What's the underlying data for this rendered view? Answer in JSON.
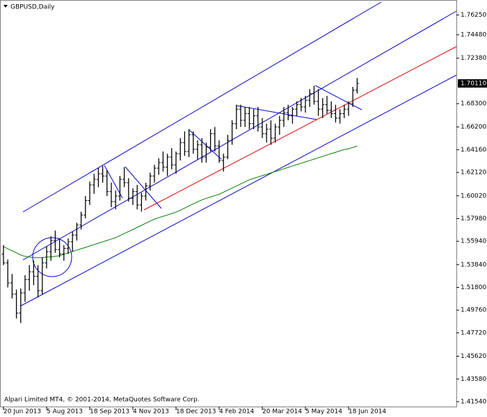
{
  "chart_data": {
    "type": "ohlc",
    "title": "GBPUSD,Daily",
    "footer": "Alpari Limited MT4, © 2001-2014, MetaQuotes Software Corp.",
    "categories": [
      "20 Jun 2013",
      null,
      null,
      null,
      null,
      null,
      null,
      null,
      null,
      null,
      "5 Aug 2013",
      null,
      null,
      null,
      null,
      null,
      null,
      null,
      null,
      null,
      "18 Sep 2013",
      null,
      null,
      null,
      null,
      null,
      null,
      null,
      null,
      null,
      "4 Nov 2013",
      null,
      null,
      null,
      null,
      null,
      null,
      null,
      null,
      null,
      "18 Dec 2013",
      null,
      null,
      null,
      null,
      null,
      null,
      null,
      null,
      null,
      "4 Feb 2014",
      null,
      null,
      null,
      null,
      null,
      null,
      null,
      null,
      null,
      "20 Mar 2014",
      null,
      null,
      null,
      null,
      null,
      null,
      null,
      null,
      null,
      "5 May 2014",
      null,
      null,
      null,
      null,
      null,
      null,
      null,
      null,
      null,
      "18 Jun 2014",
      null,
      null
    ],
    "series": [
      {
        "color": "#000000",
        "values": [
          [
            1.548,
            1.556,
            1.538,
            1.54
          ],
          [
            1.54,
            1.543,
            1.518,
            1.522
          ],
          [
            1.522,
            1.53,
            1.508,
            1.512
          ],
          [
            1.512,
            1.516,
            1.49,
            1.495
          ],
          [
            1.495,
            1.517,
            1.486,
            1.513
          ],
          [
            1.513,
            1.529,
            1.505,
            1.525
          ],
          [
            1.525,
            1.538,
            1.515,
            1.532
          ],
          [
            1.532,
            1.542,
            1.52,
            1.528
          ],
          [
            1.528,
            1.538,
            1.509,
            1.515
          ],
          [
            1.515,
            1.545,
            1.512,
            1.54
          ],
          [
            1.54,
            1.555,
            1.535,
            1.55
          ],
          [
            1.55,
            1.564,
            1.542,
            1.56
          ],
          [
            1.56,
            1.569,
            1.549,
            1.552
          ],
          [
            1.552,
            1.562,
            1.545,
            1.548
          ],
          [
            1.548,
            1.556,
            1.542,
            1.553
          ],
          [
            1.553,
            1.562,
            1.548,
            1.559
          ],
          [
            1.559,
            1.568,
            1.55,
            1.565
          ],
          [
            1.565,
            1.576,
            1.56,
            1.574
          ],
          [
            1.574,
            1.586,
            1.57,
            1.583
          ],
          [
            1.583,
            1.6,
            1.58,
            1.596
          ],
          [
            1.596,
            1.613,
            1.592,
            1.61
          ],
          [
            1.61,
            1.62,
            1.602,
            1.615
          ],
          [
            1.615,
            1.625,
            1.608,
            1.62
          ],
          [
            1.62,
            1.627,
            1.612,
            1.618
          ],
          [
            1.618,
            1.623,
            1.6,
            1.604
          ],
          [
            1.604,
            1.612,
            1.59,
            1.595
          ],
          [
            1.595,
            1.605,
            1.588,
            1.6
          ],
          [
            1.6,
            1.618,
            1.596,
            1.615
          ],
          [
            1.615,
            1.626,
            1.608,
            1.612
          ],
          [
            1.612,
            1.616,
            1.595,
            1.598
          ],
          [
            1.598,
            1.607,
            1.592,
            1.604
          ],
          [
            1.604,
            1.61,
            1.588,
            1.592
          ],
          [
            1.592,
            1.603,
            1.586,
            1.6
          ],
          [
            1.6,
            1.612,
            1.596,
            1.609
          ],
          [
            1.609,
            1.621,
            1.605,
            1.618
          ],
          [
            1.618,
            1.628,
            1.612,
            1.625
          ],
          [
            1.625,
            1.634,
            1.619,
            1.63
          ],
          [
            1.63,
            1.64,
            1.622,
            1.626
          ],
          [
            1.626,
            1.638,
            1.618,
            1.635
          ],
          [
            1.635,
            1.643,
            1.624,
            1.628
          ],
          [
            1.628,
            1.64,
            1.62,
            1.638
          ],
          [
            1.638,
            1.652,
            1.632,
            1.648
          ],
          [
            1.648,
            1.658,
            1.636,
            1.64
          ],
          [
            1.64,
            1.66,
            1.635,
            1.655
          ],
          [
            1.655,
            1.658,
            1.638,
            1.642
          ],
          [
            1.642,
            1.65,
            1.633,
            1.646
          ],
          [
            1.646,
            1.652,
            1.63,
            1.635
          ],
          [
            1.635,
            1.648,
            1.63,
            1.644
          ],
          [
            1.644,
            1.66,
            1.64,
            1.656
          ],
          [
            1.656,
            1.662,
            1.64,
            1.645
          ],
          [
            1.645,
            1.65,
            1.63,
            1.632
          ],
          [
            1.632,
            1.638,
            1.622,
            1.635
          ],
          [
            1.635,
            1.655,
            1.633,
            1.65
          ],
          [
            1.65,
            1.668,
            1.646,
            1.665
          ],
          [
            1.665,
            1.682,
            1.66,
            1.678
          ],
          [
            1.678,
            1.682,
            1.662,
            1.668
          ],
          [
            1.668,
            1.68,
            1.662,
            1.674
          ],
          [
            1.674,
            1.68,
            1.66,
            1.665
          ],
          [
            1.665,
            1.678,
            1.66,
            1.672
          ],
          [
            1.672,
            1.68,
            1.658,
            1.662
          ],
          [
            1.662,
            1.67,
            1.652,
            1.656
          ],
          [
            1.656,
            1.665,
            1.648,
            1.66
          ],
          [
            1.66,
            1.668,
            1.646,
            1.652
          ],
          [
            1.652,
            1.665,
            1.648,
            1.662
          ],
          [
            1.662,
            1.672,
            1.655,
            1.668
          ],
          [
            1.668,
            1.68,
            1.662,
            1.675
          ],
          [
            1.675,
            1.682,
            1.668,
            1.672
          ],
          [
            1.672,
            1.68,
            1.665,
            1.678
          ],
          [
            1.678,
            1.685,
            1.672,
            1.682
          ],
          [
            1.682,
            1.688,
            1.676,
            1.68
          ],
          [
            1.68,
            1.69,
            1.675,
            1.686
          ],
          [
            1.686,
            1.696,
            1.68,
            1.692
          ],
          [
            1.692,
            1.699,
            1.682,
            1.685
          ],
          [
            1.685,
            1.696,
            1.672,
            1.678
          ],
          [
            1.678,
            1.688,
            1.67,
            1.682
          ],
          [
            1.682,
            1.69,
            1.674,
            1.677
          ],
          [
            1.677,
            1.685,
            1.67,
            1.674
          ],
          [
            1.674,
            1.682,
            1.666,
            1.67
          ],
          [
            1.67,
            1.678,
            1.665,
            1.674
          ],
          [
            1.674,
            1.682,
            1.67,
            1.678
          ],
          [
            1.678,
            1.685,
            1.672,
            1.683
          ],
          [
            1.683,
            1.698,
            1.68,
            1.695
          ],
          [
            1.695,
            1.706,
            1.692,
            1.7011
          ]
        ]
      }
    ],
    "moving_average": {
      "color": "#008000",
      "values": [
        1.5546,
        1.5527,
        1.5508,
        1.549,
        1.5471,
        1.5459,
        1.5453,
        1.5447,
        1.5447,
        1.5447,
        1.5453,
        1.5453,
        1.5459,
        1.5465,
        1.5477,
        1.549,
        1.5502,
        1.5515,
        1.5527,
        1.5539,
        1.5552,
        1.5564,
        1.5577,
        1.5589,
        1.5601,
        1.5614,
        1.5626,
        1.5645,
        1.5663,
        1.5682,
        1.57,
        1.5719,
        1.5737,
        1.5756,
        1.5775,
        1.5793,
        1.5806,
        1.5818,
        1.583,
        1.5843,
        1.5855,
        1.5874,
        1.5892,
        1.5911,
        1.5929,
        1.5948,
        1.5966,
        1.5979,
        1.5991,
        1.6004,
        1.6016,
        1.6034,
        1.6053,
        1.6072,
        1.609,
        1.6109,
        1.6127,
        1.6146,
        1.6158,
        1.6171,
        1.6183,
        1.6195,
        1.6208,
        1.622,
        1.6232,
        1.6245,
        1.6257,
        1.627,
        1.6282,
        1.6294,
        1.6307,
        1.6319,
        1.6331,
        1.6344,
        1.6356,
        1.6369,
        1.6381,
        1.6393,
        1.6406,
        1.6418,
        1.6424,
        1.6437,
        1.6449
      ]
    },
    "ylim": [
      1.411,
      1.776
    ],
    "yticks": [
      {
        "value": 1.7625,
        "label": "1.76250"
      },
      {
        "value": 1.7448,
        "label": "1.74480"
      },
      {
        "value": 1.7238,
        "label": "1.72380"
      },
      {
        "value": 1.683,
        "label": "1.68300"
      },
      {
        "value": 1.662,
        "label": "1.66200"
      },
      {
        "value": 1.6416,
        "label": "1.64160"
      },
      {
        "value": 1.6212,
        "label": "1.62120"
      },
      {
        "value": 1.6002,
        "label": "1.60020"
      },
      {
        "value": 1.5798,
        "label": "1.57980"
      },
      {
        "value": 1.5594,
        "label": "1.55940"
      },
      {
        "value": 1.5384,
        "label": "1.53840"
      },
      {
        "value": 1.518,
        "label": "1.51800"
      },
      {
        "value": 1.4976,
        "label": "1.49760"
      },
      {
        "value": 1.4772,
        "label": "1.47720"
      },
      {
        "value": 1.4562,
        "label": "1.45620"
      },
      {
        "value": 1.4358,
        "label": "1.43580"
      },
      {
        "value": 1.4154,
        "label": "1.41540"
      }
    ],
    "last_price": {
      "value": 1.7011,
      "label": "1.70110"
    }
  }
}
